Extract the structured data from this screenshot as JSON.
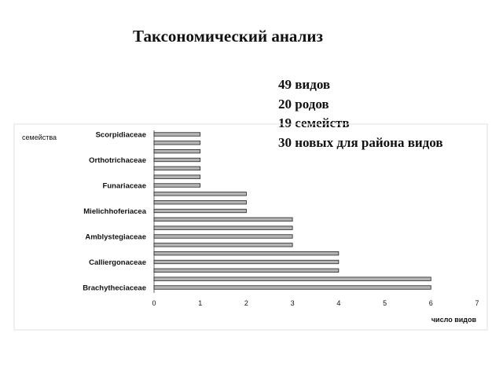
{
  "page": {
    "title": "Таксономический анализ",
    "stats": [
      "49 видов",
      "20 родов",
      "19 семейств",
      "30 новых для района видов"
    ]
  },
  "chart_data": {
    "type": "bar",
    "orientation": "horizontal",
    "ylabel": "семейства",
    "xlabel": "число видов",
    "xlim": [
      0,
      7
    ],
    "xticks": [
      0,
      1,
      2,
      3,
      4,
      5,
      6,
      7
    ],
    "categories": [
      "Scorpidiaceae",
      "",
      "",
      "Orthotrichaceae",
      "",
      "",
      "Funariaceae",
      "",
      "",
      "Mielichhoferiacea",
      "",
      "",
      "Amblystegiaceae",
      "",
      "",
      "Calliergonaceae",
      "",
      "",
      "Brachytheciaceae"
    ],
    "values": [
      1,
      1,
      1,
      1,
      1,
      1,
      1,
      2,
      2,
      2,
      3,
      3,
      3,
      3,
      4,
      4,
      4,
      6,
      6
    ],
    "grid": false,
    "legend": "none"
  }
}
